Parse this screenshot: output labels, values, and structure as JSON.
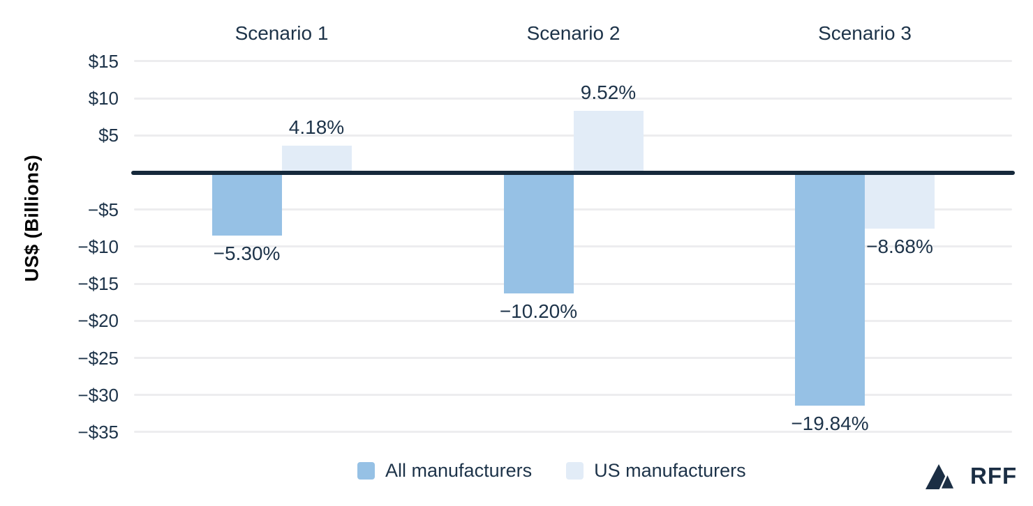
{
  "chart_data": {
    "type": "bar",
    "title": "",
    "ylabel": "US$ (Billions)",
    "categories": [
      "Scenario 1",
      "Scenario 2",
      "Scenario 3"
    ],
    "series": [
      {
        "name": "All manufacturers",
        "color": "#96c1e5",
        "values_usd_billions_est": [
          -8.5,
          -16.3,
          -31.4
        ],
        "bar_labels": [
          "−5.30%",
          "−10.20%",
          "−19.84%"
        ]
      },
      {
        "name": "US manufacturers",
        "color": "#e2ecf7",
        "values_usd_billions_est": [
          3.6,
          8.3,
          -7.6
        ],
        "bar_labels": [
          "4.18%",
          "9.52%",
          "−8.68%"
        ]
      }
    ],
    "y_axis": {
      "tick_labels": [
        "$15",
        "$10",
        "$5",
        "−$5",
        "−$10",
        "−$15",
        "−$20",
        "−$25",
        "−$30",
        "−$35"
      ],
      "tick_values": [
        15,
        10,
        5,
        -5,
        -10,
        -15,
        -20,
        -25,
        -30,
        -35
      ],
      "range": [
        -37,
        15
      ],
      "zero_line": true
    },
    "grid": "horizontal",
    "legend_position": "bottom"
  },
  "colors": {
    "text_navy": "#1d3349",
    "zero_line": "#16293b",
    "gridline": "#ededef",
    "axis_title_black": "#000000",
    "background": "#ffffff"
  },
  "branding": {
    "logo_text": "RFF"
  }
}
